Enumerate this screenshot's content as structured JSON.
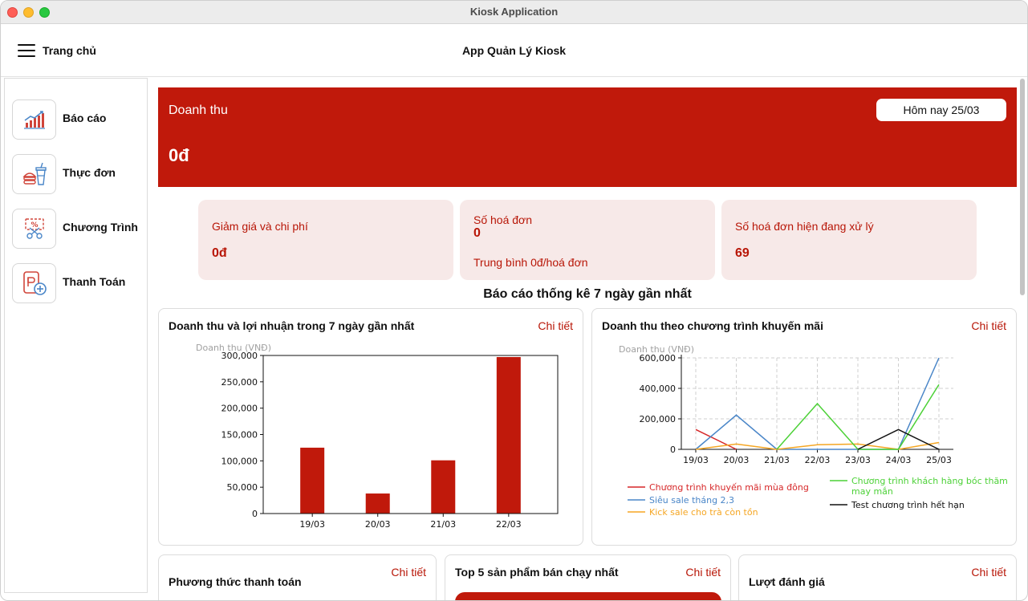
{
  "window": {
    "title": "Kiosk Application"
  },
  "appbar": {
    "home_label": "Trang chủ",
    "title": "App Quản Lý Kiosk"
  },
  "sidebar": {
    "items": [
      {
        "label": "Báo cáo",
        "icon": "report-chart-icon"
      },
      {
        "label": "Thực đơn",
        "icon": "food-menu-icon"
      },
      {
        "label": "Chương Trình",
        "icon": "promotion-coupon-icon"
      },
      {
        "label": "Thanh Toán",
        "icon": "payment-icon"
      }
    ]
  },
  "revenue": {
    "label": "Doanh thu",
    "value": "0đ",
    "date_button": "Hôm nay 25/03"
  },
  "stats": {
    "discount": {
      "label": "Giảm giá và chi phí",
      "value": "0đ"
    },
    "invoices": {
      "label": "Số hoá đơn",
      "value": "0",
      "average": "Trung bình 0đ/hoá đơn"
    },
    "processing": {
      "label": "Số hoá đơn hiện đang xử lý",
      "value": "69"
    }
  },
  "section_title": "Báo cáo thống kê 7 ngày gần nhất",
  "panels": {
    "revenue_profit": {
      "title": "Doanh thu và lợi nhuận trong 7 ngày gần nhất",
      "link": "Chi tiết"
    },
    "promotion": {
      "title": "Doanh thu theo chương trình khuyến mãi",
      "link": "Chi tiết"
    },
    "payment_method": {
      "title": "Phương thức thanh toán",
      "link": "Chi tiết"
    },
    "top5": {
      "title": "Top 5 sản phẩm bán chạy nhất",
      "link": "Chi tiết"
    },
    "ratings": {
      "title": "Lượt đánh giá",
      "link": "Chi tiết"
    }
  },
  "colors": {
    "brand_red": "#c0190b",
    "card_bg": "#f7e9e8"
  },
  "chart_data": [
    {
      "type": "bar",
      "ylabel": "Doanh thu (VNĐ)",
      "categories": [
        "19/03",
        "20/03",
        "21/03",
        "22/03"
      ],
      "values": [
        125000,
        38000,
        101000,
        297000
      ],
      "ylim": [
        0,
        300000
      ],
      "yticks": [
        0,
        50000,
        100000,
        150000,
        200000,
        250000,
        300000
      ],
      "ytick_labels": [
        "0",
        "50,000",
        "100,000",
        "150,000",
        "200,000",
        "250,000",
        "300,000"
      ],
      "color": "#c0190b",
      "grid": false
    },
    {
      "type": "line",
      "ylabel": "Doanh thu (VNĐ)",
      "categories": [
        "19/03",
        "20/03",
        "21/03",
        "22/03",
        "23/03",
        "24/03",
        "25/03"
      ],
      "ylim": [
        0,
        600000
      ],
      "yticks": [
        0,
        200000,
        400000,
        600000
      ],
      "ytick_labels": [
        "0",
        "200,000",
        "400,000",
        "600,000"
      ],
      "grid": true,
      "legend_position": "bottom",
      "series": [
        {
          "name": "Chương trình khuyến mãi mùa đông",
          "color": "#d62728",
          "values": [
            130000,
            0,
            null,
            null,
            null,
            null,
            null
          ]
        },
        {
          "name": "Siêu sale tháng 2,3",
          "color": "#4a86c8",
          "values": [
            0,
            225000,
            0,
            null,
            null,
            0,
            600000
          ]
        },
        {
          "name": "Kick sale cho trà còn tồn",
          "color": "#f5a623",
          "values": [
            0,
            35000,
            0,
            30000,
            35000,
            0,
            45000
          ]
        },
        {
          "name": "Chương trình khách hàng bóc thăm may mắn",
          "color": "#4cd137",
          "values": [
            null,
            null,
            0,
            300000,
            0,
            0,
            425000
          ]
        },
        {
          "name": "Test chương trình hết hạn",
          "color": "#111111",
          "values": [
            null,
            null,
            null,
            null,
            0,
            130000,
            0
          ]
        }
      ]
    }
  ]
}
